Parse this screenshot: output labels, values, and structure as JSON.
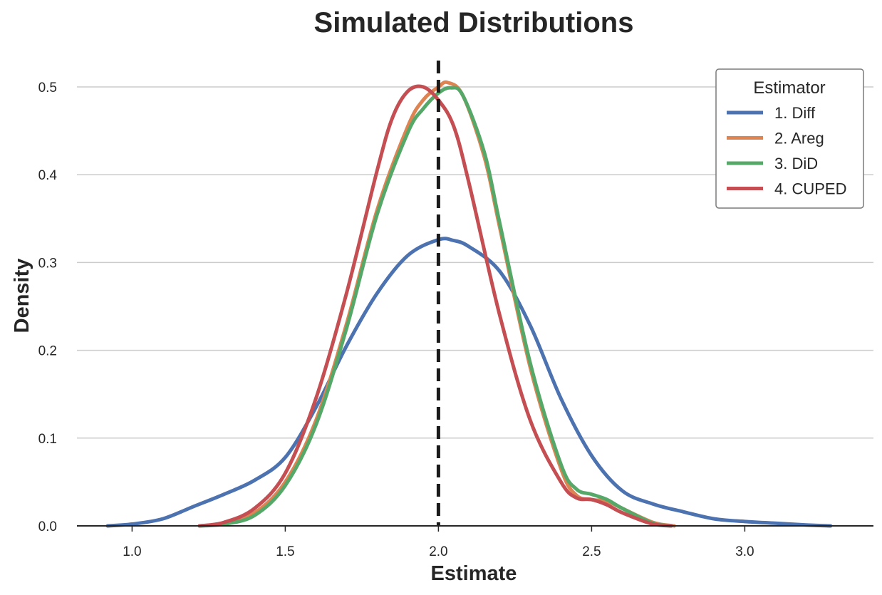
{
  "chart_data": {
    "type": "line",
    "title": "Simulated Distributions",
    "xlabel": "Estimate",
    "ylabel": "Density",
    "xlim": [
      0.82,
      3.42
    ],
    "ylim": [
      0.0,
      0.53
    ],
    "xticks": [
      1.0,
      1.5,
      2.0,
      2.5,
      3.0
    ],
    "xtick_labels": [
      "1.0",
      "1.5",
      "2.0",
      "2.5",
      "3.0"
    ],
    "yticks": [
      0.0,
      0.1,
      0.2,
      0.3,
      0.4,
      0.5
    ],
    "ytick_labels": [
      "0.0",
      "0.1",
      "0.2",
      "0.3",
      "0.4",
      "0.5"
    ],
    "grid": "horizontal",
    "reference_line": {
      "x": 2.0,
      "style": "dashed",
      "color": "#1a1a1a"
    },
    "legend": {
      "title": "Estimator",
      "placement": "top-right"
    },
    "series": [
      {
        "name": "1. Diff",
        "color": "#4c72b0",
        "x": [
          0.92,
          1.0,
          1.1,
          1.2,
          1.3,
          1.4,
          1.5,
          1.6,
          1.7,
          1.8,
          1.9,
          2.0,
          2.05,
          2.1,
          2.2,
          2.3,
          2.4,
          2.5,
          2.6,
          2.7,
          2.8,
          2.9,
          3.0,
          3.1,
          3.2,
          3.28
        ],
        "y": [
          0.0,
          0.002,
          0.008,
          0.022,
          0.036,
          0.052,
          0.078,
          0.135,
          0.205,
          0.265,
          0.308,
          0.326,
          0.325,
          0.318,
          0.29,
          0.228,
          0.145,
          0.08,
          0.04,
          0.025,
          0.016,
          0.008,
          0.005,
          0.003,
          0.001,
          0.0
        ]
      },
      {
        "name": "2. Areg",
        "color": "#dd8452",
        "x": [
          1.22,
          1.3,
          1.4,
          1.5,
          1.6,
          1.7,
          1.8,
          1.9,
          1.95,
          2.0,
          2.03,
          2.08,
          2.15,
          2.2,
          2.3,
          2.4,
          2.45,
          2.5,
          2.55,
          2.6,
          2.7,
          2.77
        ],
        "y": [
          0.0,
          0.003,
          0.015,
          0.05,
          0.12,
          0.23,
          0.36,
          0.455,
          0.485,
          0.5,
          0.505,
          0.49,
          0.42,
          0.34,
          0.18,
          0.065,
          0.035,
          0.03,
          0.028,
          0.02,
          0.004,
          0.0
        ]
      },
      {
        "name": "3. DiD",
        "color": "#55a868",
        "x": [
          1.22,
          1.3,
          1.4,
          1.5,
          1.6,
          1.7,
          1.8,
          1.9,
          1.95,
          2.0,
          2.04,
          2.08,
          2.15,
          2.2,
          2.3,
          2.4,
          2.45,
          2.5,
          2.55,
          2.6,
          2.7,
          2.76
        ],
        "y": [
          0.0,
          0.002,
          0.012,
          0.046,
          0.115,
          0.225,
          0.355,
          0.448,
          0.475,
          0.493,
          0.499,
          0.49,
          0.425,
          0.345,
          0.185,
          0.07,
          0.042,
          0.036,
          0.03,
          0.02,
          0.003,
          0.0
        ]
      },
      {
        "name": "4. CUPED",
        "color": "#c44e52",
        "x": [
          1.22,
          1.3,
          1.4,
          1.5,
          1.6,
          1.7,
          1.8,
          1.85,
          1.9,
          1.95,
          2.0,
          2.05,
          2.1,
          2.2,
          2.3,
          2.4,
          2.45,
          2.5,
          2.55,
          2.6,
          2.7,
          2.76
        ],
        "y": [
          0.0,
          0.004,
          0.02,
          0.06,
          0.145,
          0.265,
          0.405,
          0.465,
          0.495,
          0.5,
          0.485,
          0.455,
          0.39,
          0.24,
          0.12,
          0.05,
          0.032,
          0.03,
          0.024,
          0.015,
          0.002,
          0.0
        ]
      }
    ]
  }
}
